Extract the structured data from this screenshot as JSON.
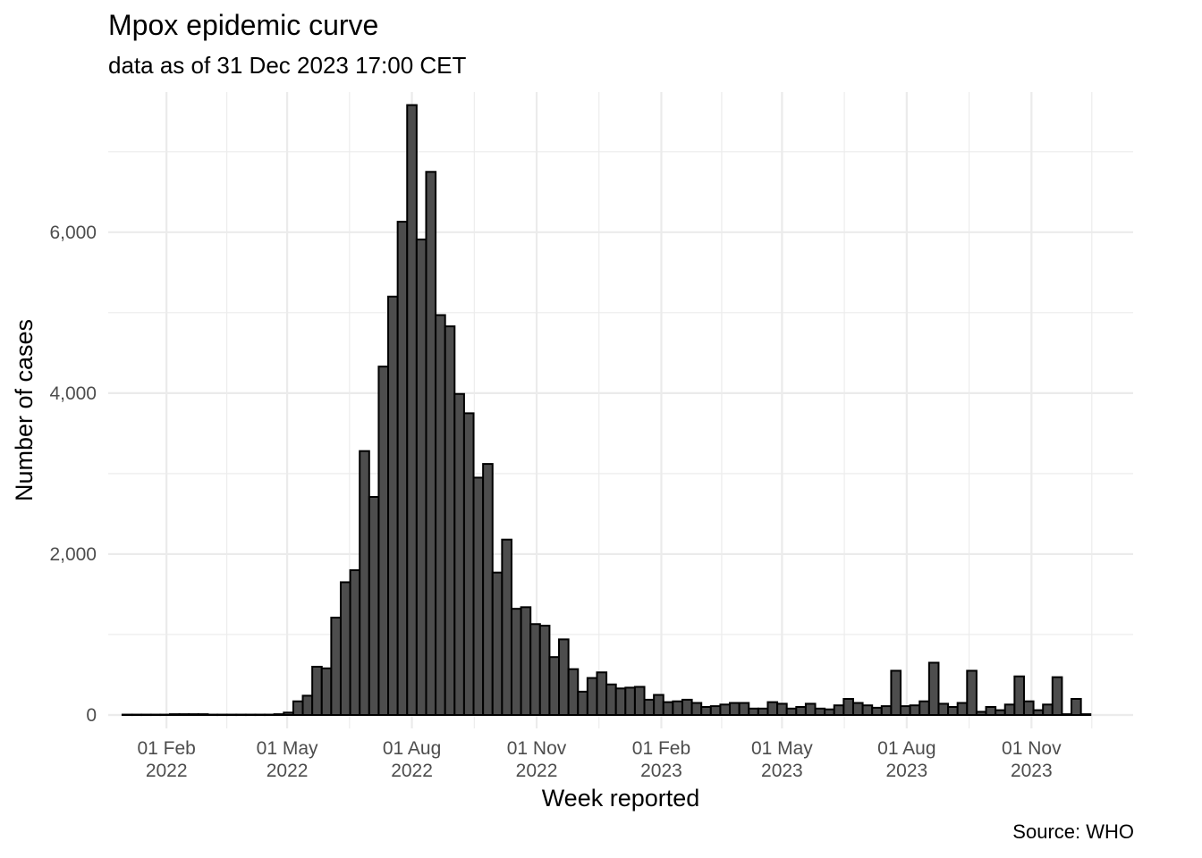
{
  "chart_data": {
    "type": "bar",
    "title": "Mpox epidemic curve",
    "subtitle": "data as of 31 Dec 2023 17:00 CET",
    "caption": "Source: WHO",
    "xlabel": "Week reported",
    "ylabel": "Number of cases",
    "ylim": [
      0,
      7600
    ],
    "y_ticks": [
      0,
      2000,
      4000,
      6000
    ],
    "y_tick_labels": [
      "0",
      "2,000",
      "4,000",
      "6,000"
    ],
    "x_range": [
      "2021-12-20",
      "2024-01-15"
    ],
    "x_ticks": [
      {
        "date": "2022-02-01",
        "label": [
          "01 Feb",
          "2022"
        ]
      },
      {
        "date": "2022-05-01",
        "label": [
          "01 May",
          "2022"
        ]
      },
      {
        "date": "2022-08-01",
        "label": [
          "01 Aug",
          "2022"
        ]
      },
      {
        "date": "2022-11-01",
        "label": [
          "01 Nov",
          "2022"
        ]
      },
      {
        "date": "2023-02-01",
        "label": [
          "01 Feb",
          "2023"
        ]
      },
      {
        "date": "2023-05-01",
        "label": [
          "01 May",
          "2023"
        ]
      },
      {
        "date": "2023-08-01",
        "label": [
          "01 Aug",
          "2023"
        ]
      },
      {
        "date": "2023-11-01",
        "label": [
          "01 Nov",
          "2023"
        ]
      }
    ],
    "grid": true,
    "bar_fill": "#4d4d4d",
    "bar_stroke": "#000000",
    "first_week": "2022-01-03",
    "week_days": 7,
    "values": [
      5,
      5,
      5,
      5,
      5,
      10,
      10,
      10,
      10,
      5,
      5,
      5,
      5,
      5,
      5,
      5,
      10,
      30,
      170,
      240,
      600,
      580,
      1210,
      1650,
      1800,
      3280,
      2710,
      4330,
      5200,
      6130,
      7580,
      5910,
      6750,
      4970,
      4830,
      3990,
      3750,
      2950,
      3120,
      1770,
      2180,
      1320,
      1340,
      1130,
      1110,
      720,
      940,
      570,
      290,
      460,
      530,
      380,
      330,
      340,
      350,
      190,
      250,
      160,
      170,
      190,
      150,
      100,
      110,
      130,
      150,
      150,
      80,
      80,
      160,
      140,
      80,
      100,
      140,
      80,
      70,
      120,
      200,
      150,
      120,
      90,
      110,
      550,
      110,
      120,
      170,
      650,
      140,
      100,
      150,
      550,
      40,
      100,
      60,
      130,
      480,
      170,
      60,
      130,
      470,
      10,
      200,
      10
    ]
  }
}
